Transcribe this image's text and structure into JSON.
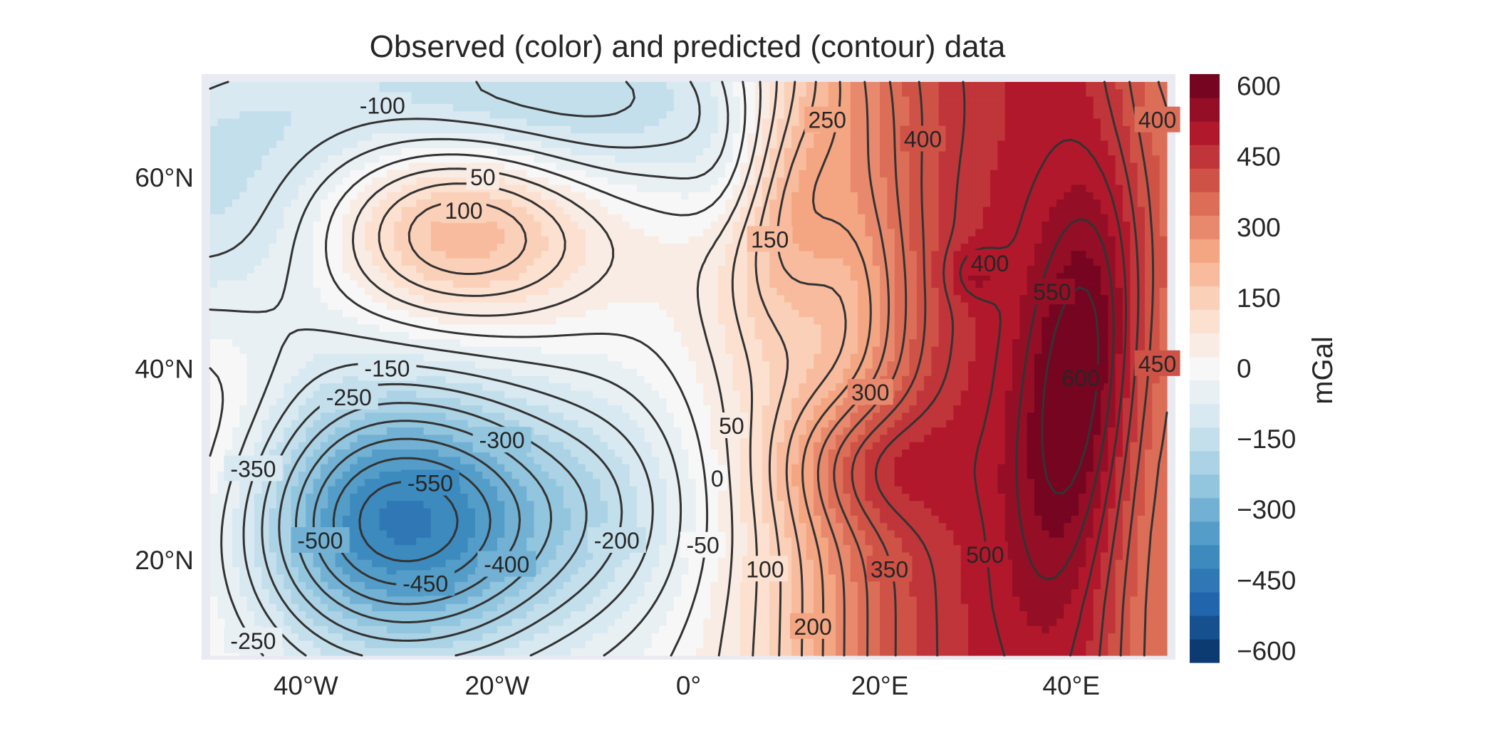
{
  "chart_data": {
    "type": "heatmap",
    "title": "Observed (color) and predicted (contour) data",
    "colorbar_label": "mGal",
    "colormap": "RdBu_r",
    "lon_range": [
      -50,
      50
    ],
    "lat_range": [
      10,
      70
    ],
    "x_ticks": [
      {
        "value": -40,
        "label": "40°W"
      },
      {
        "value": -20,
        "label": "20°W"
      },
      {
        "value": 0,
        "label": "0°"
      },
      {
        "value": 20,
        "label": "20°E"
      },
      {
        "value": 40,
        "label": "40°E"
      }
    ],
    "y_ticks": [
      {
        "value": 20,
        "label": "20°N"
      },
      {
        "value": 40,
        "label": "40°N"
      },
      {
        "value": 60,
        "label": "60°N"
      }
    ],
    "colorbar_range": [
      -625,
      625
    ],
    "colorbar_step": 50,
    "colorbar_ticks": [
      {
        "value": 600,
        "label": "600"
      },
      {
        "value": 450,
        "label": "450"
      },
      {
        "value": 300,
        "label": "300"
      },
      {
        "value": 150,
        "label": "150"
      },
      {
        "value": 0,
        "label": "0"
      },
      {
        "value": -150,
        "label": "−150"
      },
      {
        "value": -300,
        "label": "−300"
      },
      {
        "value": -450,
        "label": "−450"
      },
      {
        "value": -600,
        "label": "−600"
      }
    ],
    "contour_levels": [
      -550,
      -500,
      -450,
      -400,
      -350,
      -300,
      -250,
      -200,
      -150,
      -100,
      -50,
      0,
      50,
      100,
      150,
      200,
      250,
      300,
      350,
      400,
      450,
      500,
      550,
      600
    ],
    "contour_labels": [
      {
        "lon": -32,
        "lat": 67.5,
        "text": "-100"
      },
      {
        "lon": -21.5,
        "lat": 60,
        "text": "50"
      },
      {
        "lon": -23.5,
        "lat": 56.5,
        "text": "100"
      },
      {
        "lon": -31.5,
        "lat": 40,
        "text": "-150"
      },
      {
        "lon": -35.5,
        "lat": 37,
        "text": "-250"
      },
      {
        "lon": -19.5,
        "lat": 32.5,
        "text": "-300"
      },
      {
        "lon": -45.5,
        "lat": 29.5,
        "text": "-350"
      },
      {
        "lon": -27,
        "lat": 28,
        "text": "-550"
      },
      {
        "lon": -38.5,
        "lat": 22,
        "text": "-500"
      },
      {
        "lon": -27.5,
        "lat": 17.5,
        "text": "-450"
      },
      {
        "lon": -19,
        "lat": 19.5,
        "text": "-400"
      },
      {
        "lon": -7.5,
        "lat": 22,
        "text": "-200"
      },
      {
        "lon": -45.5,
        "lat": 11.5,
        "text": "-250"
      },
      {
        "lon": 4.5,
        "lat": 34,
        "text": "50"
      },
      {
        "lon": 3,
        "lat": 28.5,
        "text": "0"
      },
      {
        "lon": 1.5,
        "lat": 21.5,
        "text": "-50"
      },
      {
        "lon": 8,
        "lat": 19,
        "text": "100"
      },
      {
        "lon": 8.5,
        "lat": 53.5,
        "text": "150"
      },
      {
        "lon": 14.5,
        "lat": 66,
        "text": "250"
      },
      {
        "lon": 24.5,
        "lat": 64,
        "text": "400"
      },
      {
        "lon": 31.5,
        "lat": 51,
        "text": "400"
      },
      {
        "lon": 19,
        "lat": 37.5,
        "text": "300"
      },
      {
        "lon": 38,
        "lat": 48,
        "text": "550"
      },
      {
        "lon": 41,
        "lat": 39,
        "text": "600"
      },
      {
        "lon": 49,
        "lat": 40.5,
        "text": "450"
      },
      {
        "lon": 49,
        "lat": 66,
        "text": "400"
      },
      {
        "lon": 21,
        "lat": 19,
        "text": "350"
      },
      {
        "lon": 31,
        "lat": 20.5,
        "text": "500"
      },
      {
        "lon": 13,
        "lat": 13,
        "text": "200"
      }
    ]
  }
}
